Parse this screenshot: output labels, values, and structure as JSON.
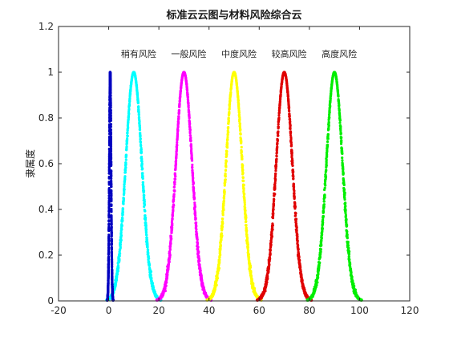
{
  "chart_data": {
    "type": "line",
    "title": "标准云云图与材料风险综合云",
    "xlabel": "",
    "ylabel": "隶属度",
    "xlim": [
      -20,
      120
    ],
    "ylim": [
      0,
      1.2
    ],
    "xticks": [
      "-20",
      "0",
      "20",
      "40",
      "60",
      "80",
      "100",
      "120"
    ],
    "yticks": [
      "0",
      "0.2",
      "0.4",
      "0.6",
      "0.8",
      "1",
      "1.2"
    ],
    "grid": false,
    "series": [
      {
        "label": "稍有风险",
        "ex": 10,
        "en": 3.2,
        "color": "#00ffff"
      },
      {
        "label": "一般风险",
        "ex": 30,
        "en": 3.2,
        "color": "#ff00ff"
      },
      {
        "label": "中度风险",
        "ex": 50,
        "en": 3.2,
        "color": "#ffff00"
      },
      {
        "label": "较高风险",
        "ex": 70,
        "en": 3.2,
        "color": "#e00000"
      },
      {
        "label": "高度风险",
        "ex": 90,
        "en": 3.2,
        "color": "#00ee00"
      },
      {
        "label": "",
        "ex": 0.6,
        "en": 0.35,
        "color": "#0000c0"
      }
    ],
    "annotations": [
      "稍有风险",
      "一般风险",
      "中度风险",
      "较高风险",
      "高度风险"
    ]
  }
}
